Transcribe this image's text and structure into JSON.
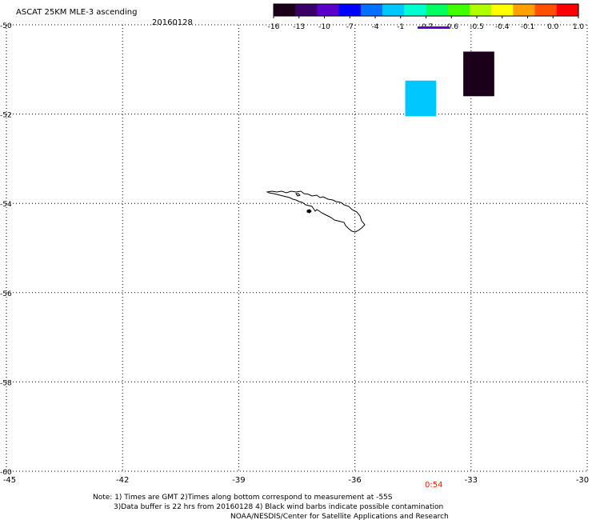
{
  "header": {
    "title": "ASCAT 25KM MLE-3 ascending",
    "date": "20160128"
  },
  "colorbar": {
    "ticks": [
      "-16",
      "-13",
      "-10",
      "-7",
      "-4",
      "-1",
      "-0.7",
      "-0.6",
      "-0.5",
      "-0.4",
      "-0.1",
      "0.0",
      "1.0"
    ],
    "colors": [
      "#1a0019",
      "#3a006a",
      "#5a00c8",
      "#0000ff",
      "#0070ff",
      "#00c8ff",
      "#00ffd0",
      "#00ff60",
      "#40ff00",
      "#b0ff00",
      "#ffff00",
      "#ffa000",
      "#ff5000",
      "#ff0000"
    ]
  },
  "axes": {
    "lon_labels": [
      "-45",
      "-42",
      "-39",
      "-36",
      "-33",
      "-30"
    ],
    "lat_labels": [
      "-50",
      "-52",
      "-54",
      "-56",
      "-58",
      "-60"
    ],
    "lon_range": [
      -45,
      -30
    ],
    "lat_range": [
      -60,
      -50
    ]
  },
  "data_cells": [
    {
      "lon_min": -34.7,
      "lon_max": -33.9,
      "lat_min": -52.05,
      "lat_max": -51.25,
      "color": "#00c8ff"
    },
    {
      "lon_min": -33.2,
      "lon_max": -32.4,
      "lat_min": -51.6,
      "lat_max": -50.6,
      "color": "#1a0019"
    }
  ],
  "time_label": {
    "text": "0:54",
    "color": "#ff2000"
  },
  "notes": {
    "line1": "Note: 1) Times are GMT 2)Times along bottom correspond to measurement at -55S",
    "line2": "3)Data buffer is 22 hrs from 20160128 4) Black wind barbs indicate possible contamination",
    "line3": "NOAA/NESDIS/Center for Satellite Applications and Research"
  }
}
